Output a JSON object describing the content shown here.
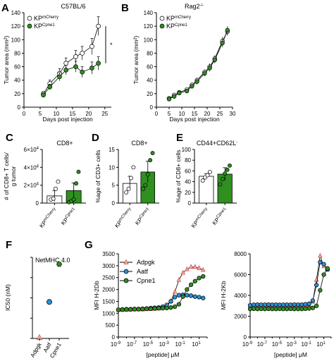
{
  "figure": {
    "panel_letters": [
      "A",
      "B",
      "C",
      "D",
      "E",
      "F",
      "G"
    ]
  },
  "colors": {
    "mcherry": "#ffffff",
    "cpne1": "#2f8f1f",
    "cpne1_dark": "#1f6e12",
    "adpgk": "#f4a7a3",
    "aatf": "#2b8fd6",
    "line": "#000000"
  },
  "chart_data": [
    {
      "id": "A",
      "type": "line",
      "title": "C57BL/6",
      "xlabel": "Days post injection",
      "ylabel": "Tumor area (mm²)",
      "xlim": [
        0,
        27
      ],
      "ylim": [
        0,
        140
      ],
      "xticks": [
        "0",
        "5",
        "10",
        "15",
        "20",
        "25"
      ],
      "yticks": [
        "0",
        "20",
        "40",
        "60",
        "80",
        "100",
        "120",
        "140"
      ],
      "legend": [
        {
          "base": "KP",
          "sup": "mCherry"
        },
        {
          "base": "KP",
          "sup": "Cpne1"
        }
      ],
      "annotation": "*",
      "series": [
        {
          "name": "KPmCherry",
          "x": [
            6,
            8,
            11,
            13,
            16,
            18,
            21,
            23
          ],
          "y": [
            20,
            35,
            50,
            65,
            75,
            80,
            90,
            120
          ],
          "err": [
            3,
            5,
            7,
            8,
            9,
            10,
            12,
            14
          ]
        },
        {
          "name": "KPCpne1",
          "x": [
            6,
            8,
            11,
            13,
            16,
            18,
            21,
            23
          ],
          "y": [
            18,
            30,
            45,
            55,
            60,
            52,
            58,
            65
          ],
          "err": [
            3,
            4,
            6,
            7,
            8,
            8,
            9,
            10
          ]
        }
      ]
    },
    {
      "id": "B",
      "type": "line",
      "title": "Rag2",
      "title_sup": "-/-",
      "xlabel": "Days post injection",
      "ylabel": "Tumor area (mm²)",
      "xlim": [
        0,
        30
      ],
      "ylim": [
        0,
        140
      ],
      "xticks": [
        "0",
        "5",
        "10",
        "15",
        "20",
        "25",
        "30"
      ],
      "yticks": [
        "0",
        "20",
        "40",
        "60",
        "80",
        "100",
        "120",
        "140"
      ],
      "legend": [
        {
          "base": "KP",
          "sup": "mCherry"
        },
        {
          "base": "KP",
          "sup": "Cpne1"
        }
      ],
      "series": [
        {
          "name": "KPmCherry",
          "x": [
            5,
            7,
            9,
            12,
            14,
            16,
            19,
            21,
            23,
            26,
            28
          ],
          "y": [
            13,
            18,
            22,
            26,
            33,
            40,
            52,
            60,
            72,
            98,
            112
          ],
          "err": [
            2,
            2,
            3,
            3,
            3,
            4,
            4,
            5,
            5,
            6,
            6
          ]
        },
        {
          "name": "KPCpne1",
          "x": [
            5,
            7,
            9,
            12,
            14,
            16,
            19,
            21,
            23,
            26,
            28
          ],
          "y": [
            12,
            16,
            21,
            24,
            31,
            38,
            50,
            58,
            70,
            95,
            114
          ],
          "err": [
            2,
            2,
            3,
            3,
            3,
            4,
            4,
            5,
            5,
            6,
            6
          ]
        }
      ]
    },
    {
      "id": "C",
      "type": "bar",
      "title": "CD8+",
      "ylabel": "# of CD8+ T cells/ g tumor",
      "ylim": [
        0,
        60000
      ],
      "yticks": [
        {
          "base": "0",
          "sup": ""
        },
        {
          "base": "2×10",
          "sup": "4"
        },
        {
          "base": "4×10",
          "sup": "4"
        },
        {
          "base": "6×10",
          "sup": "4"
        }
      ],
      "categories": [
        {
          "base": "KP",
          "sup": "mCherry"
        },
        {
          "base": "KP",
          "sup": "Cpne1"
        }
      ],
      "values": [
        8000,
        14000
      ],
      "errors": [
        6000,
        8500
      ],
      "points": [
        [
          4000,
          5000,
          16000,
          24000
        ],
        [
          1000,
          2000,
          4000,
          22000,
          35000
        ]
      ]
    },
    {
      "id": "D",
      "type": "bar",
      "title": "CD8+",
      "ylabel": "%age of CD3+ cells",
      "ylim": [
        0,
        15
      ],
      "yticks": [
        "0",
        "5",
        "10",
        "15"
      ],
      "categories": [
        {
          "base": "KP",
          "sup": "mCherry"
        },
        {
          "base": "KP",
          "sup": "Cpne1"
        }
      ],
      "values": [
        5.5,
        8.7
      ],
      "errors": [
        2,
        3
      ],
      "points": [
        [
          3,
          4,
          7,
          10
        ],
        [
          4,
          5,
          8,
          12,
          14
        ]
      ]
    },
    {
      "id": "E",
      "type": "bar",
      "title": "CD44+CD62L",
      "title_sup": "-",
      "ylabel": "%age of CD8+ cells",
      "ylim": [
        0,
        100
      ],
      "yticks": [
        "0",
        "20",
        "40",
        "60",
        "80",
        "100"
      ],
      "categories": [
        {
          "base": "KP",
          "sup": "mCherry"
        },
        {
          "base": "KP",
          "sup": "Cpne1"
        }
      ],
      "values": [
        50,
        54
      ],
      "errors": [
        5,
        12
      ],
      "points": [
        [
          42,
          48,
          52,
          58
        ],
        [
          35,
          45,
          55,
          62,
          70
        ]
      ]
    },
    {
      "id": "F",
      "type": "scatter",
      "title": "NetMHC 4.0",
      "ylabel": "IC50 (nM)",
      "ylim": [
        0,
        200
      ],
      "yticks": [
        "0",
        "50",
        "100",
        "150",
        "200"
      ],
      "categories": [
        "Adpgk",
        "Aatf",
        "Cpne1"
      ],
      "values": [
        2,
        90,
        183
      ]
    },
    {
      "id": "G1",
      "type": "line",
      "ylabel": "MFI H-2Db",
      "xlabel": "[peptide] μM",
      "xscale": "log",
      "xlim": [
        -9,
        2
      ],
      "ylim": [
        0,
        3500
      ],
      "xticks": [
        {
          "base": "10",
          "sup": "-9"
        },
        {
          "base": "10",
          "sup": "-7"
        },
        {
          "base": "10",
          "sup": "-5"
        },
        {
          "base": "10",
          "sup": "-3"
        },
        {
          "base": "10",
          "sup": "-1"
        },
        {
          "base": "10",
          "sup": "1"
        }
      ],
      "yticks": [
        "0",
        "500",
        "1000",
        "1500",
        "2000",
        "2500",
        "3000",
        "3500"
      ],
      "legend": [
        "Adpgk",
        "Aatf",
        "Cpne1"
      ],
      "series": [
        {
          "name": "Adpgk",
          "x": [
            -9,
            -8.5,
            -8,
            -7.5,
            -7,
            -6.5,
            -6,
            -5.5,
            -5,
            -4.5,
            -4,
            -3.5,
            -3,
            -2.5,
            -2,
            -1.5,
            -1,
            -0.5,
            0,
            0.5,
            1,
            1.5
          ],
          "y": [
            1150,
            1150,
            1150,
            1160,
            1160,
            1170,
            1160,
            1170,
            1180,
            1190,
            1200,
            1230,
            1300,
            1500,
            1900,
            2400,
            2700,
            2850,
            2950,
            2950,
            2900,
            2820
          ]
        },
        {
          "name": "Aatf",
          "x": [
            -9,
            -8.5,
            -8,
            -7.5,
            -7,
            -6.5,
            -6,
            -5.5,
            -5,
            -4.5,
            -4,
            -3.5,
            -3,
            -2.5,
            -2,
            -1.5,
            -1,
            -0.5,
            0,
            0.5,
            1,
            1.5
          ],
          "y": [
            1150,
            1160,
            1170,
            1170,
            1180,
            1180,
            1190,
            1200,
            1220,
            1230,
            1240,
            1280,
            1350,
            1500,
            1680,
            1760,
            1780,
            1760,
            1740,
            1700,
            1680,
            1640
          ]
        },
        {
          "name": "Cpne1",
          "x": [
            -9,
            -8.5,
            -8,
            -7.5,
            -7,
            -6.5,
            -6,
            -5.5,
            -5,
            -4.5,
            -4,
            -3.5,
            -3,
            -2.5,
            -2,
            -1.5,
            -1,
            -0.5,
            0,
            0.5,
            1,
            1.5
          ],
          "y": [
            1150,
            1150,
            1160,
            1160,
            1170,
            1170,
            1180,
            1190,
            1190,
            1200,
            1210,
            1210,
            1220,
            1240,
            1280,
            1380,
            1700,
            2000,
            2200,
            2350,
            2480,
            2550
          ]
        }
      ]
    },
    {
      "id": "G2",
      "type": "line",
      "ylabel": "MFI H-2Kb",
      "xlabel": "[peptide] μM",
      "xscale": "log",
      "xlim": [
        -9,
        2
      ],
      "ylim": [
        0,
        8000
      ],
      "xticks": [
        {
          "base": "10",
          "sup": "-9"
        },
        {
          "base": "10",
          "sup": "-7"
        },
        {
          "base": "10",
          "sup": "-5"
        },
        {
          "base": "10",
          "sup": "-3"
        },
        {
          "base": "10",
          "sup": "-1"
        },
        {
          "base": "10",
          "sup": "1"
        }
      ],
      "yticks": [
        "0",
        "2000",
        "4000",
        "6000",
        "8000"
      ],
      "series": [
        {
          "name": "Adpgk",
          "x": [
            -9,
            -8.5,
            -8,
            -7.5,
            -7,
            -6.5,
            -6,
            -5.5,
            -5,
            -4.5,
            -4,
            -3.5,
            -3,
            -2.5,
            -2,
            -1.5,
            -1,
            -0.5,
            0,
            0.5,
            1,
            1.5
          ],
          "y": [
            3000,
            3000,
            3020,
            3000,
            3010,
            3000,
            3020,
            3010,
            3000,
            3000,
            3010,
            3000,
            3000,
            3000,
            3000,
            3050,
            3100,
            3400,
            5500,
            7800,
            6800,
            6500
          ]
        },
        {
          "name": "Aatf",
          "x": [
            -9,
            -8.5,
            -8,
            -7.5,
            -7,
            -6.5,
            -6,
            -5.5,
            -5,
            -4.5,
            -4,
            -3.5,
            -3,
            -2.5,
            -2,
            -1.5,
            -1,
            -0.5,
            0,
            0.5,
            1,
            1.5
          ],
          "y": [
            3050,
            3100,
            3120,
            3100,
            3110,
            3120,
            3100,
            3110,
            3100,
            3100,
            3110,
            3100,
            3120,
            3110,
            3120,
            3150,
            3200,
            3500,
            5000,
            7200,
            7000,
            6500
          ]
        },
        {
          "name": "Cpne1",
          "x": [
            -9,
            -8.5,
            -8,
            -7.5,
            -7,
            -6.5,
            -6,
            -5.5,
            -5,
            -4.5,
            -4,
            -3.5,
            -3,
            -2.5,
            -2,
            -1.5,
            -1,
            -0.5,
            0,
            0.5,
            1,
            1.5
          ],
          "y": [
            2700,
            2720,
            2700,
            2710,
            2700,
            2710,
            2700,
            2700,
            2710,
            2700,
            2700,
            2710,
            2700,
            2700,
            2700,
            2720,
            2750,
            2800,
            3000,
            4500,
            6000,
            6600
          ]
        }
      ]
    }
  ]
}
